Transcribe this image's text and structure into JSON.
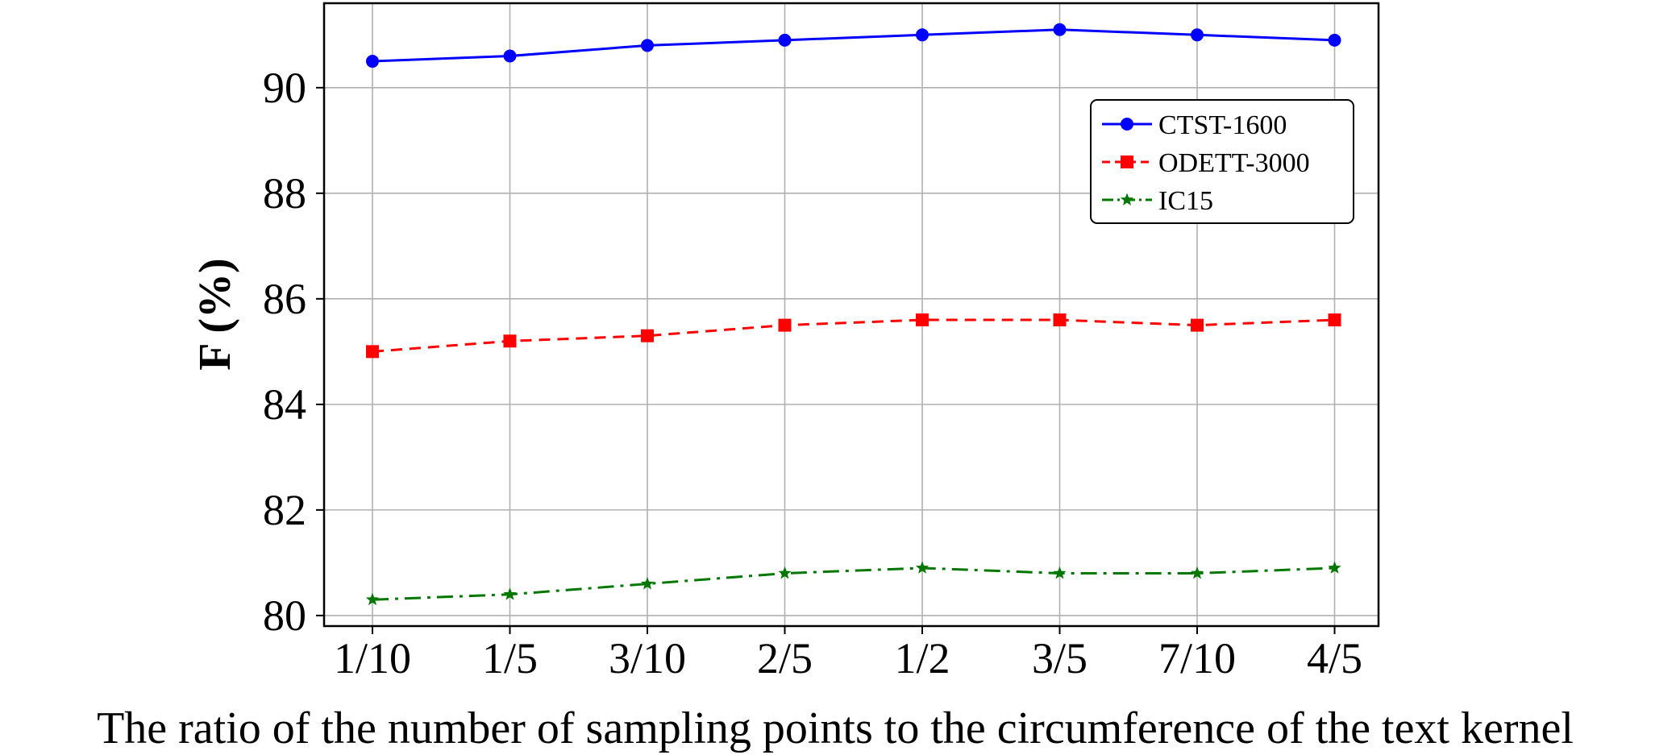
{
  "chart_data": {
    "type": "line",
    "title": "",
    "xlabel": "The ratio of the number of sampling points to the circumference of the text kernel",
    "ylabel": "F (%)",
    "categories": [
      "1/10",
      "1/5",
      "3/10",
      "2/5",
      "1/2",
      "3/5",
      "7/10",
      "4/5"
    ],
    "ylim": [
      79.8,
      91.6
    ],
    "yticks": [
      80,
      82,
      84,
      86,
      88,
      90
    ],
    "grid": true,
    "legend_position": "top-right",
    "series": [
      {
        "name": "CTST-1600",
        "color": "#0000ff",
        "marker": "circle",
        "linestyle": "solid",
        "values": [
          90.5,
          90.6,
          90.8,
          90.9,
          91.0,
          91.1,
          91.0,
          90.9
        ]
      },
      {
        "name": "ODETT-3000",
        "color": "#ff0000",
        "marker": "square",
        "linestyle": "dashed",
        "values": [
          85.0,
          85.2,
          85.3,
          85.5,
          85.6,
          85.6,
          85.5,
          85.6
        ]
      },
      {
        "name": "IC15",
        "color": "#007700",
        "marker": "star",
        "linestyle": "dashdot",
        "values": [
          80.3,
          80.4,
          80.6,
          80.8,
          80.9,
          80.8,
          80.8,
          80.9
        ]
      }
    ]
  }
}
